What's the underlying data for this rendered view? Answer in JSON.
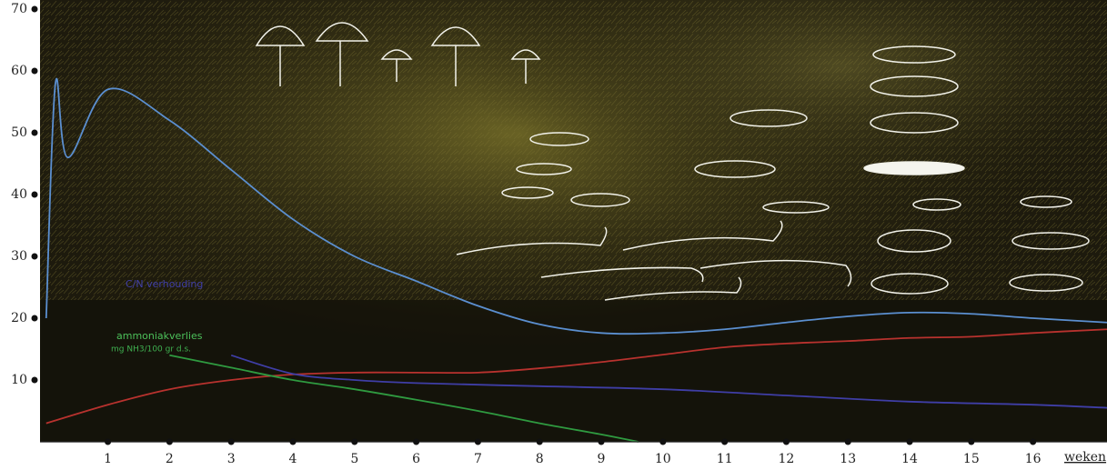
{
  "chart_data": {
    "type": "line",
    "x_label": "weken",
    "xlim": [
      -0.1,
      17.2
    ],
    "ylim": [
      0,
      70
    ],
    "xticks": [
      1,
      2,
      3,
      4,
      5,
      6,
      7,
      8,
      9,
      10,
      11,
      12,
      13,
      14,
      15,
      16
    ],
    "yticks": [
      10,
      20,
      30,
      40,
      50,
      60,
      70
    ],
    "annotations": [
      {
        "text": "mg NH3/100 gr d.s."
      }
    ],
    "series": [
      {
        "color": "#5b8fd0",
        "x": [
          0,
          0.15,
          0.35,
          1,
          2,
          3,
          4,
          5,
          6,
          7,
          8,
          9,
          10,
          11,
          12,
          13,
          14,
          15,
          16,
          17.2
        ],
        "values": [
          20,
          58,
          46,
          57,
          52,
          44,
          36,
          30,
          26,
          22,
          19,
          17.6,
          17.6,
          18.2,
          19.3,
          20.3,
          20.9,
          20.7,
          20,
          19.3
        ]
      },
      {
        "color": "#b8322e",
        "x": [
          0,
          1,
          2,
          3,
          4,
          5,
          6,
          7,
          8,
          9,
          10,
          11,
          12,
          13,
          14,
          15,
          16,
          17.2
        ],
        "values": [
          3,
          6,
          8.5,
          10,
          10.9,
          11.2,
          11.2,
          11.2,
          11.9,
          12.9,
          14.1,
          15.3,
          15.9,
          16.3,
          16.8,
          17,
          17.6,
          18.2
        ]
      },
      {
        "name": "C/N verhouding",
        "color": "#3f3ea6",
        "x": [
          3,
          4,
          5,
          6,
          8,
          10,
          12,
          14,
          16,
          17.2
        ],
        "values": [
          14,
          11,
          10,
          9.5,
          9,
          8.5,
          7.5,
          6.5,
          6,
          5.5
        ]
      },
      {
        "name": "ammoniakverlies",
        "color": "#2f9a40",
        "x": [
          2,
          3,
          4,
          5,
          6,
          7,
          8,
          9,
          9.6
        ],
        "values": [
          14,
          12,
          10,
          8.5,
          6.8,
          5,
          3,
          1.2,
          0
        ]
      }
    ]
  }
}
